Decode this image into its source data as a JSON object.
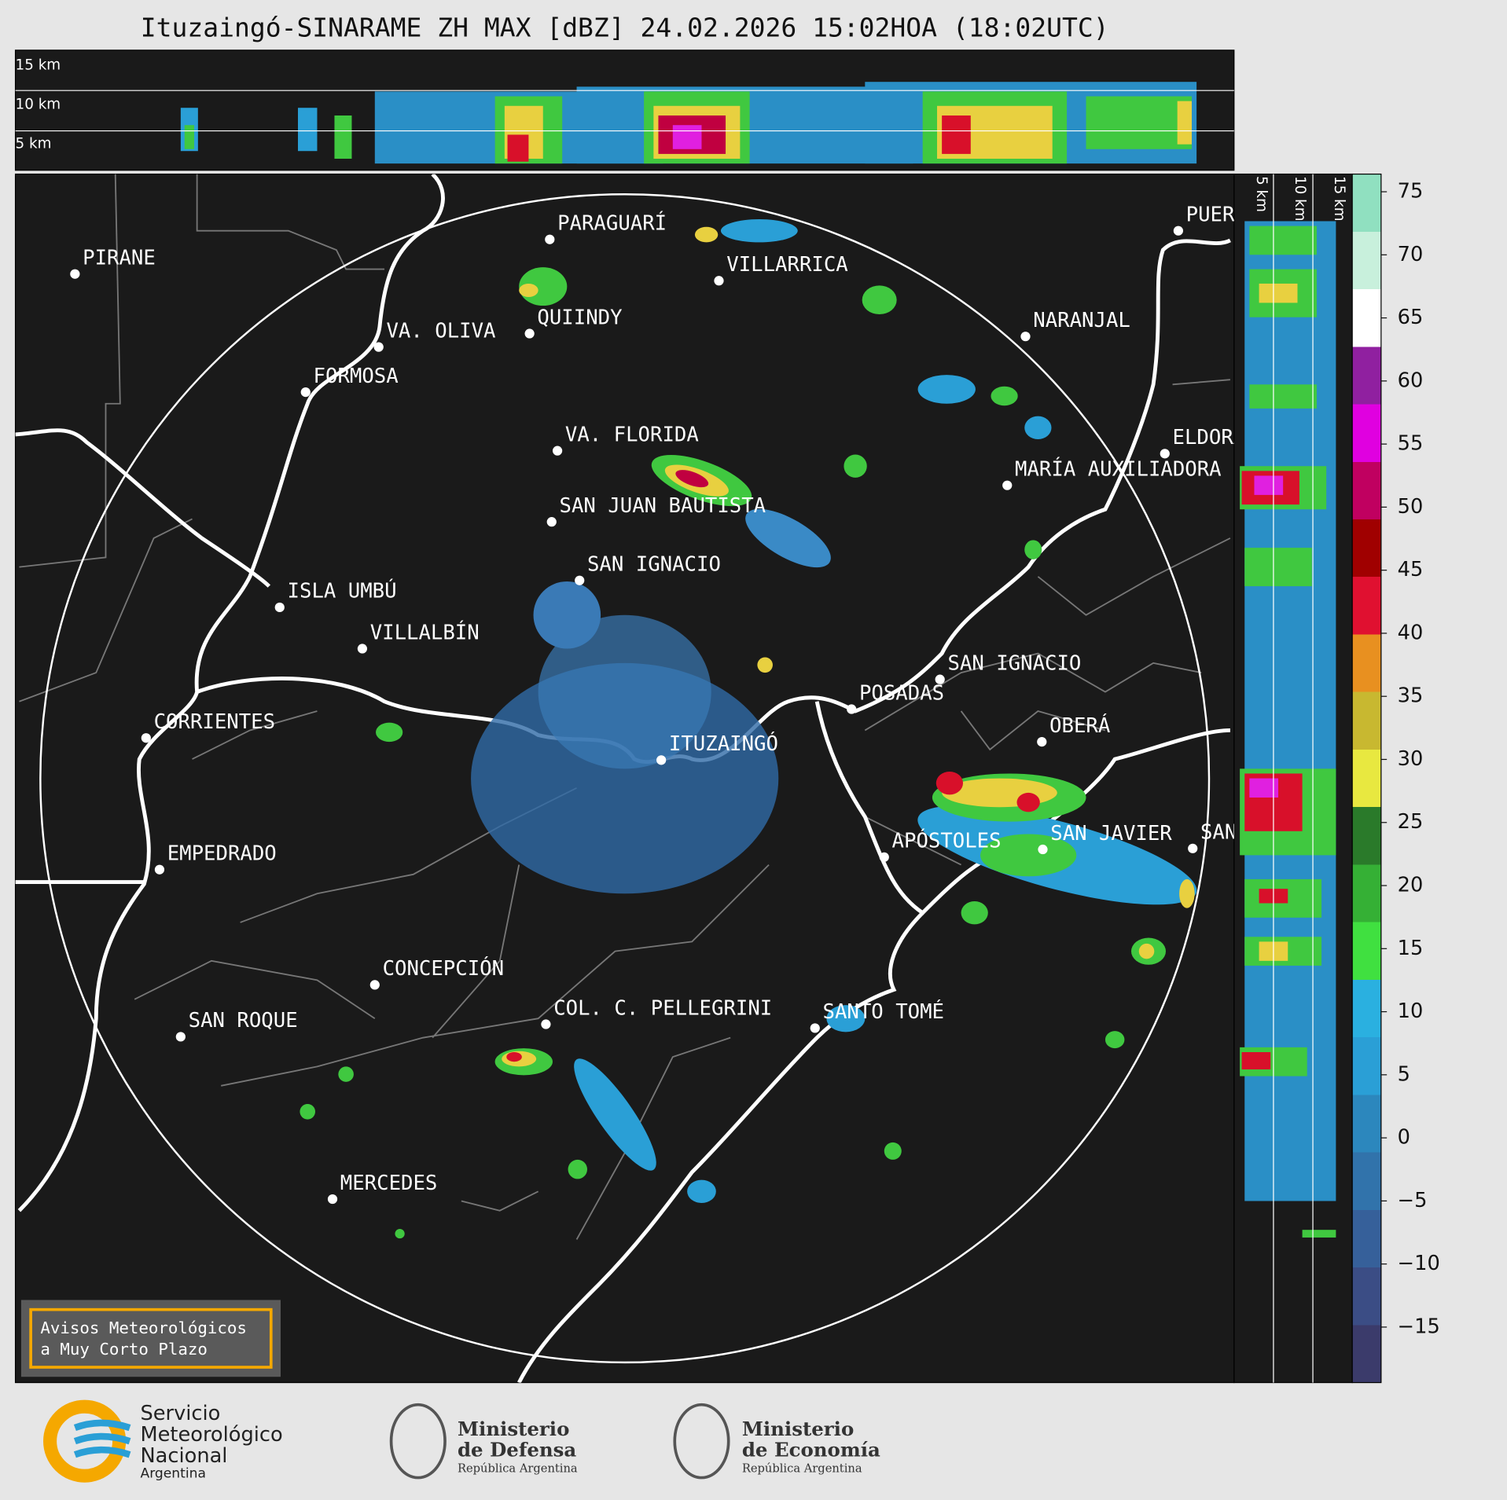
{
  "title": "Ituzaingó-SINARAME ZH MAX [dBZ] 24.02.2026 15:02HOA (18:02UTC)",
  "heights": [
    "5 km",
    "10 km",
    "15 km"
  ],
  "places": [
    {
      "name": "PIRANE"
    },
    {
      "name": "PARAGUARÍ"
    },
    {
      "name": "VILLARRICA"
    },
    {
      "name": "VA. OLIVA"
    },
    {
      "name": "QUIINDY"
    },
    {
      "name": "NARANJAL"
    },
    {
      "name": "FORMOSA"
    },
    {
      "name": "VA. FLORIDA"
    },
    {
      "name": "ELDORADO"
    },
    {
      "name": "MARÍA AUXILIADORA"
    },
    {
      "name": "SAN JUAN BAUTISTA"
    },
    {
      "name": "SAN IGNACIO"
    },
    {
      "name": "ISLA UMBÚ"
    },
    {
      "name": "VILLALBÍN"
    },
    {
      "name": "SAN IGNACIO"
    },
    {
      "name": "POSADAS"
    },
    {
      "name": "CORRIENTES"
    },
    {
      "name": "ITUZAINGÓ"
    },
    {
      "name": "OBERÁ"
    },
    {
      "name": "EMPEDRADO"
    },
    {
      "name": "APÓSTOLES"
    },
    {
      "name": "SAN JAVIER"
    },
    {
      "name": "SAN"
    },
    {
      "name": "CONCEPCIÓN"
    },
    {
      "name": "COL. C. PELLEGRINI"
    },
    {
      "name": "SANTO TOMÉ"
    },
    {
      "name": "SAN ROQUE"
    },
    {
      "name": "MERCEDES"
    },
    {
      "name": "PUERTO"
    }
  ],
  "warning_box": [
    "Avisos Meteorológicos",
    "a Muy Corto Plazo"
  ],
  "colorbar": {
    "lim": [
      -19.4,
      76.4
    ],
    "ticks": [
      {
        "value": -15,
        "label": "−15"
      },
      {
        "value": -10,
        "label": "−10"
      },
      {
        "value": -5,
        "label": "−5"
      },
      0,
      5,
      10,
      15,
      20,
      25,
      30,
      35,
      40,
      45,
      50,
      55,
      60,
      65,
      70,
      75
    ],
    "colormap": [
      "#3b3b6b",
      "#3b4d85",
      "#36609a",
      "#3173ab",
      "#2c87bd",
      "#2a9fd6",
      "#2ab0e0",
      "#40e040",
      "#35b035",
      "#2a7a2a",
      "#e8e840",
      "#c8b830",
      "#e89020",
      "#e01030",
      "#a00000",
      "#c00060",
      "#e000e0",
      "#9020a0",
      "#ffffff",
      "#c8f0dc",
      "#90e0c0"
    ],
    "colormap_lim": [
      -19.4,
      76.4
    ]
  },
  "logos": [
    {
      "lines": [
        "Servicio",
        "Meteorológico",
        "Nacional",
        "Argentina"
      ]
    },
    {
      "lines": [
        "Ministerio",
        "de Defensa",
        "República Argentina"
      ]
    },
    {
      "lines": [
        "Ministerio",
        "de Economía",
        "República Argentina"
      ]
    }
  ]
}
